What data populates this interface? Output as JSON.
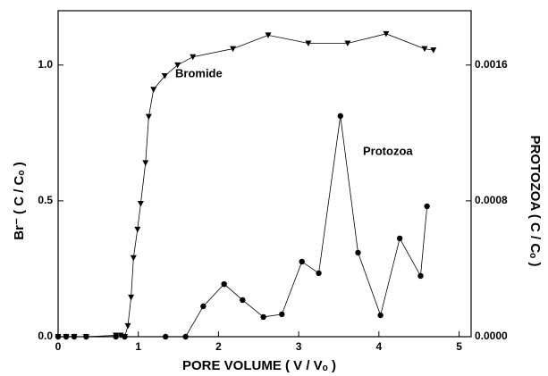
{
  "chart_data": {
    "type": "line",
    "xlabel": "PORE  VOLUME  ( V / Vₒ )",
    "ylabel": "Br⁻  ( C / Cₒ )",
    "y2label": "PROTOZOA  ( C / Cₒ )",
    "annotations": [
      "Bromide",
      "Protozoa"
    ],
    "xlim": [
      0,
      5.15
    ],
    "ylim": [
      0,
      1.2
    ],
    "y2lim": [
      0,
      0.00192
    ],
    "xticks": [
      0,
      1,
      2,
      3,
      4,
      5
    ],
    "yticks": [
      {
        "value": 0,
        "label": "0.0"
      },
      {
        "value": 0.5,
        "label": "0.5"
      },
      {
        "value": 1,
        "label": "1.0"
      }
    ],
    "y2ticks": [
      {
        "value": 0,
        "label": "0.0000"
      },
      {
        "value": 0.0008,
        "label": "0.0008"
      },
      {
        "value": 0.0016,
        "label": "0.0016"
      }
    ],
    "series": [
      {
        "name": "Bromide",
        "color": "#000000",
        "marker": "triangle-down",
        "x": [
          0,
          0.1,
          0.2,
          0.35,
          0.72,
          0.78,
          0.83,
          0.87,
          0.91,
          0.94,
          0.99,
          1.03,
          1.09,
          1.13,
          1.19,
          1.33,
          1.49,
          1.68,
          2.18,
          2.62,
          3.12,
          3.61,
          4.09,
          4.57,
          4.68
        ],
        "values": [
          0,
          0,
          0,
          0,
          0.005,
          0.005,
          0,
          0.04,
          0.145,
          0.29,
          0.395,
          0.49,
          0.64,
          0.81,
          0.91,
          0.96,
          1.0,
          1.03,
          1.06,
          1.11,
          1.08,
          1.08,
          1.115,
          1.06,
          1.055
        ]
      },
      {
        "name": "Protozoa",
        "color": "#000000",
        "marker": "circle",
        "axis": "y2",
        "x": [
          0,
          0.1,
          0.2,
          0.35,
          0.72,
          0.83,
          1.34,
          1.59,
          1.81,
          2.07,
          2.3,
          2.56,
          2.79,
          3.04,
          3.25,
          3.52,
          3.74,
          4.02,
          4.26,
          4.52,
          4.6
        ],
        "values": [
          0,
          0,
          0,
          0,
          0,
          0,
          0,
          0,
          0.000179,
          0.00031,
          0.000216,
          0.000116,
          0.000132,
          0.000442,
          0.000374,
          0.0013,
          0.000495,
          0.000126,
          0.000579,
          0.000358,
          0.000768
        ]
      }
    ]
  }
}
